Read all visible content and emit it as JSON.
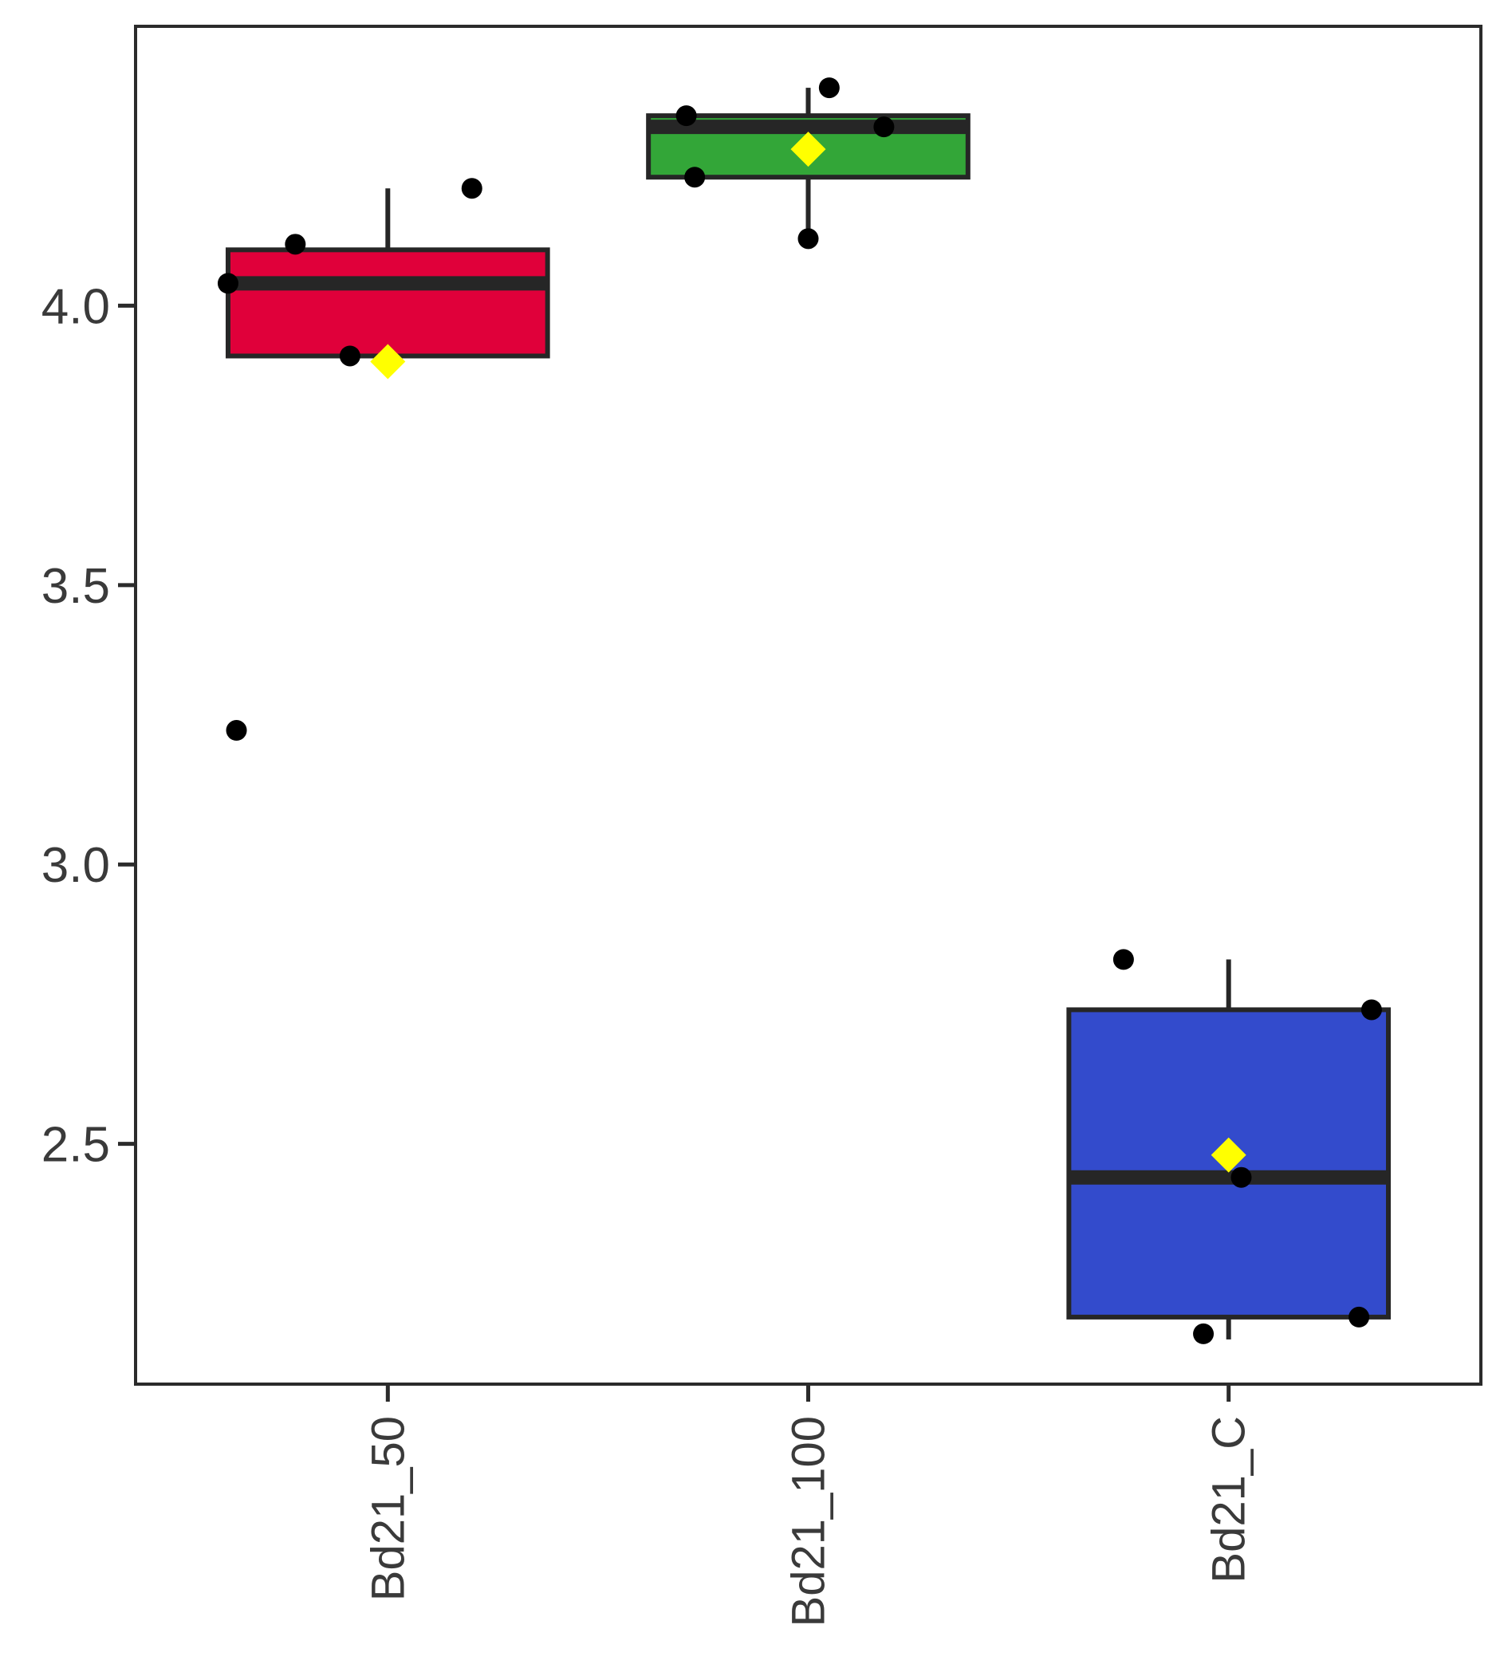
{
  "chart_data": {
    "type": "box",
    "title": "",
    "xlabel": "",
    "ylabel": "",
    "ylim": [
      2.07,
      4.5
    ],
    "yticks": [
      2.5,
      3.0,
      3.5,
      4.0
    ],
    "ytick_labels": [
      "2.5",
      "3.0",
      "3.5",
      "4.0"
    ],
    "categories": [
      "Bd21_50",
      "Bd21_100",
      "Bd21_C"
    ],
    "legend": "none",
    "grid": false,
    "mean_marker_color": "#FFFF00",
    "point_color": "#000000",
    "box_outline_color": "#262626",
    "series": [
      {
        "category": "Bd21_50",
        "color": "#E0003A",
        "whisker_low": 3.91,
        "q1": 3.91,
        "median": 4.04,
        "q3": 4.1,
        "whisker_high": 4.21,
        "mean": 3.9,
        "points": [
          {
            "x_offset": -0.38,
            "y": 4.04
          },
          {
            "x_offset": -0.22,
            "y": 4.11
          },
          {
            "x_offset": -0.09,
            "y": 3.91
          },
          {
            "x_offset": 0.2,
            "y": 4.21
          },
          {
            "x_offset": -0.36,
            "y": 3.24
          }
        ]
      },
      {
        "category": "Bd21_100",
        "color": "#33A638",
        "whisker_low": 4.12,
        "q1": 4.23,
        "median": 4.32,
        "q3": 4.34,
        "whisker_high": 4.39,
        "mean": 4.28,
        "points": [
          {
            "x_offset": -0.29,
            "y": 4.34
          },
          {
            "x_offset": -0.27,
            "y": 4.23
          },
          {
            "x_offset": 0.0,
            "y": 4.12
          },
          {
            "x_offset": 0.05,
            "y": 4.39
          },
          {
            "x_offset": 0.18,
            "y": 4.32
          }
        ]
      },
      {
        "category": "Bd21_C",
        "color": "#334BCC",
        "whisker_low": 2.15,
        "q1": 2.19,
        "median": 2.44,
        "q3": 2.74,
        "whisker_high": 2.83,
        "mean": 2.48,
        "points": [
          {
            "x_offset": -0.25,
            "y": 2.83
          },
          {
            "x_offset": 0.34,
            "y": 2.74
          },
          {
            "x_offset": 0.03,
            "y": 2.44
          },
          {
            "x_offset": 0.31,
            "y": 2.19
          },
          {
            "x_offset": -0.06,
            "y": 2.16
          }
        ]
      }
    ]
  }
}
